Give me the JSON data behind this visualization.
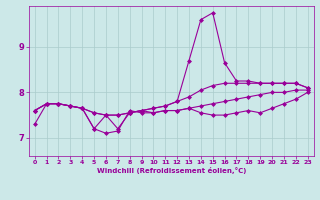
{
  "title": "",
  "xlabel": "Windchill (Refroidissement éolien,°C)",
  "ylabel": "",
  "xlim": [
    -0.5,
    23.5
  ],
  "ylim": [
    6.6,
    9.9
  ],
  "yticks": [
    7,
    8,
    9
  ],
  "xticks": [
    0,
    1,
    2,
    3,
    4,
    5,
    6,
    7,
    8,
    9,
    10,
    11,
    12,
    13,
    14,
    15,
    16,
    17,
    18,
    19,
    20,
    21,
    22,
    23
  ],
  "bg_color": "#cce8e8",
  "grid_color": "#aacccc",
  "line_color": "#990099",
  "marker": "D",
  "markersize": 2.0,
  "linewidth": 0.8,
  "series": [
    [
      7.6,
      7.75,
      7.75,
      7.7,
      7.65,
      7.55,
      7.5,
      7.5,
      7.55,
      7.6,
      7.65,
      7.7,
      7.8,
      7.9,
      8.05,
      8.15,
      8.2,
      8.2,
      8.2,
      8.2,
      8.2,
      8.2,
      8.2,
      8.1
    ],
    [
      7.6,
      7.75,
      7.75,
      7.7,
      7.65,
      7.55,
      7.5,
      7.5,
      7.55,
      7.6,
      7.65,
      7.7,
      7.8,
      8.7,
      9.6,
      9.75,
      8.65,
      8.25,
      8.25,
      8.2,
      8.2,
      8.2,
      8.2,
      8.1
    ],
    [
      7.6,
      7.75,
      7.75,
      7.7,
      7.65,
      7.2,
      7.1,
      7.15,
      7.6,
      7.55,
      7.55,
      7.6,
      7.6,
      7.65,
      7.7,
      7.75,
      7.8,
      7.85,
      7.9,
      7.95,
      8.0,
      8.0,
      8.05,
      8.05
    ],
    [
      7.3,
      7.75,
      7.75,
      7.7,
      7.65,
      7.2,
      7.5,
      7.2,
      7.55,
      7.6,
      7.55,
      7.6,
      7.6,
      7.65,
      7.55,
      7.5,
      7.5,
      7.55,
      7.6,
      7.55,
      7.65,
      7.75,
      7.85,
      8.0
    ]
  ]
}
